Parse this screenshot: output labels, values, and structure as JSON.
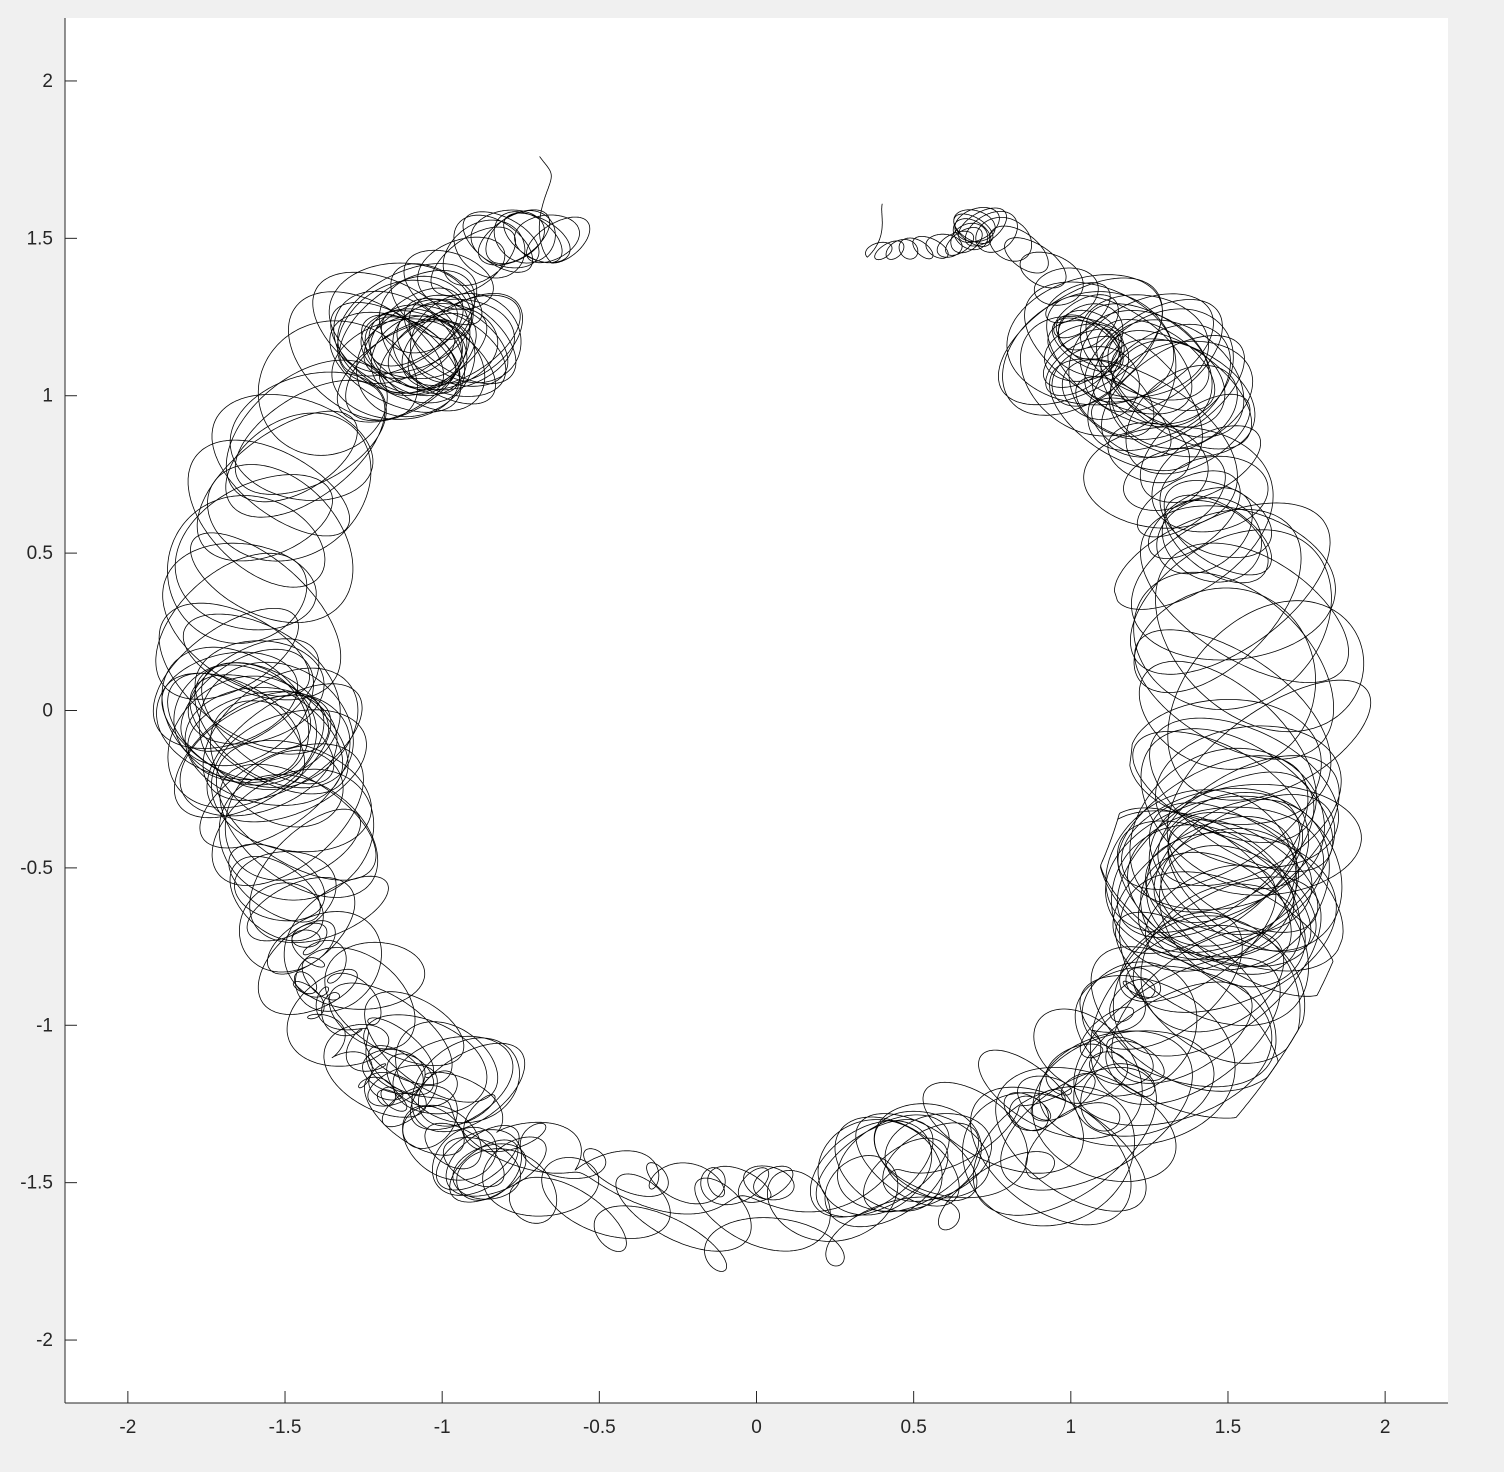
{
  "chart_data": {
    "type": "line",
    "title": "",
    "xlabel": "",
    "ylabel": "",
    "xlim": [
      -2.2,
      2.2
    ],
    "ylim": [
      -2.2,
      2.2
    ],
    "x_ticks": [
      -2,
      -1.5,
      -1,
      -0.5,
      0,
      0.5,
      1,
      1.5,
      2
    ],
    "x_tick_labels": [
      "-2",
      "-1.5",
      "-1",
      "-0.5",
      "0",
      "0.5",
      "1",
      "1.5",
      "2"
    ],
    "y_ticks": [
      -2,
      -1.5,
      -1,
      -0.5,
      0,
      0.5,
      1,
      1.5,
      2
    ],
    "y_tick_labels": [
      "-2",
      "-1.5",
      "-1",
      "-0.5",
      "0",
      "0.5",
      "1",
      "1.5",
      "2"
    ],
    "grid": false,
    "legend": "none",
    "series": [
      {
        "color": "#000000",
        "description_values": {
          "start_point": [
            -0.69,
            1.76
          ],
          "end_point": [
            0.4,
            1.61
          ],
          "annulus_inner_radius": 1.2,
          "annulus_outer_radius": 2.0,
          "gap_center_angle_deg": 90
        }
      }
    ]
  },
  "colors": {
    "figure_background": "#f0f0f0",
    "axes_background": "#ffffff",
    "axis_line": "#262626",
    "trace": "#000000"
  }
}
